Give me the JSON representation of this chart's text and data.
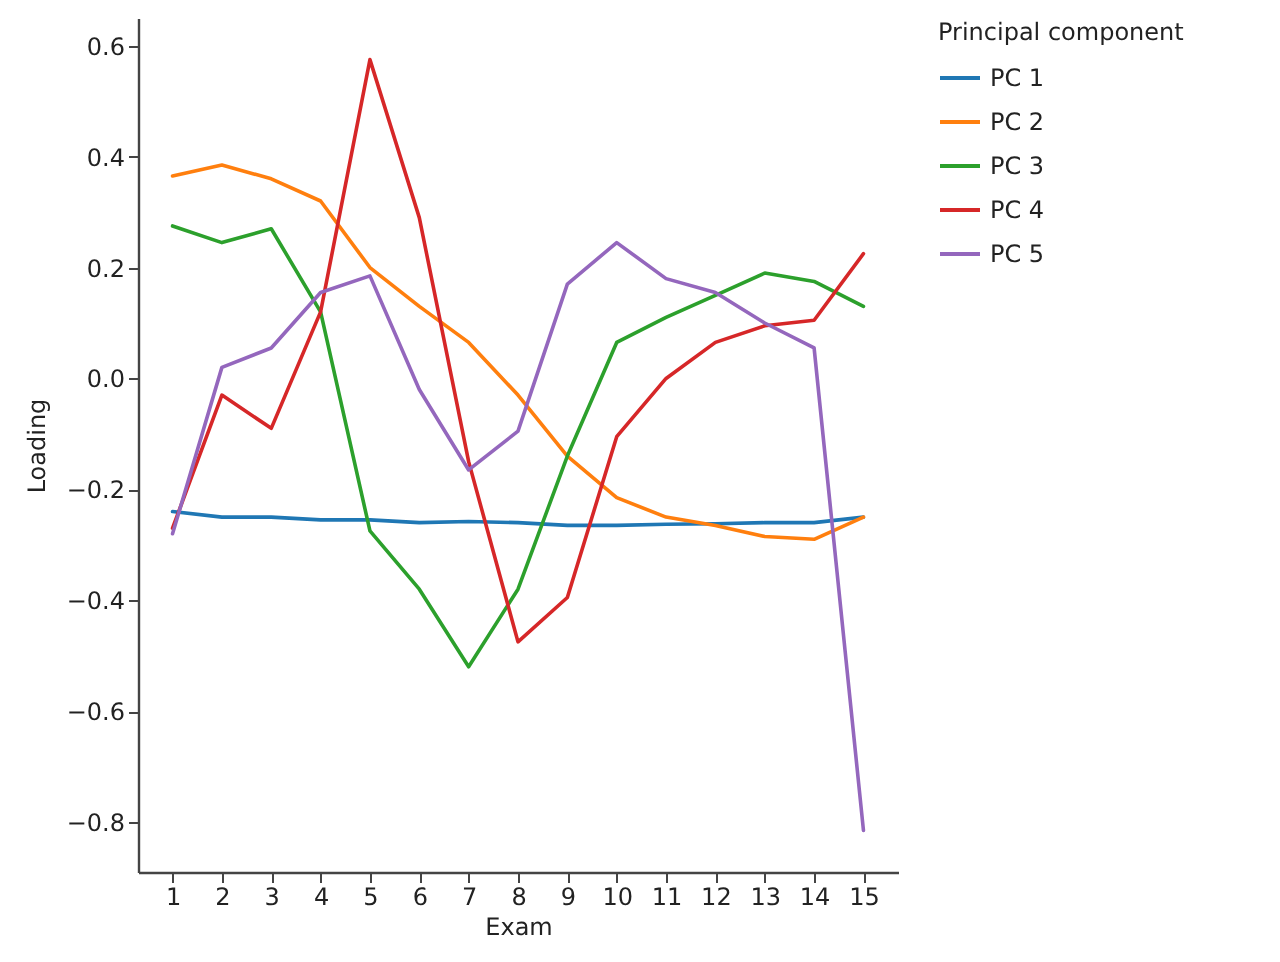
{
  "chart_data": {
    "type": "line",
    "xlabel": "Exam",
    "ylabel": "Loading",
    "legend_title": "Principal component",
    "legend": "right",
    "grid": false,
    "x": [
      1,
      2,
      3,
      4,
      5,
      6,
      7,
      8,
      9,
      10,
      11,
      12,
      13,
      14,
      15
    ],
    "xlim": [
      0.3,
      15.7
    ],
    "xticks": [
      1,
      2,
      3,
      4,
      5,
      6,
      7,
      8,
      9,
      10,
      11,
      12,
      13,
      14,
      15
    ],
    "ylim": [
      -0.89,
      0.65
    ],
    "yticks": [
      {
        "value": -0.8,
        "label": "−0.8"
      },
      {
        "value": -0.6,
        "label": "−0.6"
      },
      {
        "value": -0.4,
        "label": "−0.4"
      },
      {
        "value": -0.2,
        "label": "−0.2"
      },
      {
        "value": 0,
        "label": "0.0"
      },
      {
        "value": 0.2,
        "label": "0.2"
      },
      {
        "value": 0.4,
        "label": "0.4"
      },
      {
        "value": 0.6,
        "label": "0.6"
      }
    ],
    "series": [
      {
        "name": "PC 1",
        "color": "#1f77b4",
        "values": [
          -0.24,
          -0.25,
          -0.25,
          -0.255,
          -0.255,
          -0.26,
          -0.258,
          -0.26,
          -0.265,
          -0.265,
          -0.263,
          -0.262,
          -0.26,
          -0.26,
          -0.25
        ]
      },
      {
        "name": "PC 2",
        "color": "#ff7f0e",
        "values": [
          0.365,
          0.385,
          0.36,
          0.32,
          0.2,
          0.13,
          0.065,
          -0.03,
          -0.14,
          -0.215,
          -0.25,
          -0.265,
          -0.285,
          -0.29,
          -0.25
        ]
      },
      {
        "name": "PC 3",
        "color": "#2ca02c",
        "values": [
          0.275,
          0.245,
          0.27,
          0.12,
          -0.275,
          -0.38,
          -0.52,
          -0.38,
          -0.14,
          0.065,
          0.11,
          0.15,
          0.19,
          0.175,
          0.13
        ]
      },
      {
        "name": "PC 4",
        "color": "#d62728",
        "values": [
          -0.27,
          -0.03,
          -0.09,
          0.12,
          0.575,
          0.29,
          -0.15,
          -0.475,
          -0.395,
          -0.105,
          0.0,
          0.065,
          0.095,
          0.105,
          0.225
        ]
      },
      {
        "name": "PC 5",
        "color": "#9467bd",
        "values": [
          -0.28,
          0.02,
          0.055,
          0.155,
          0.185,
          -0.02,
          -0.165,
          -0.095,
          0.17,
          0.245,
          0.18,
          0.155,
          0.1,
          0.055,
          -0.815
        ]
      }
    ]
  }
}
